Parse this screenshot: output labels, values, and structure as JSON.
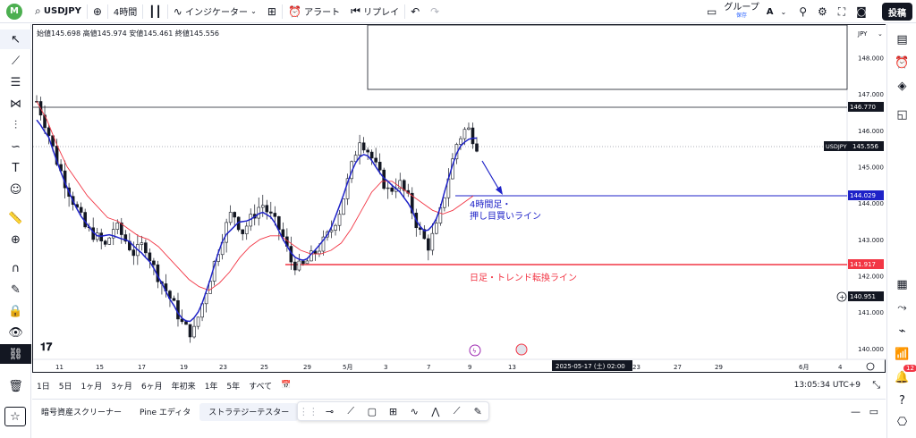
{
  "topbar": {
    "avatar": "M",
    "symbol": "USDJPY",
    "interval": "4時間",
    "indicators": "インジケーター",
    "alert": "アラート",
    "replay": "リプレイ",
    "group_label": "グループ",
    "group_sub": "保存",
    "group_letter": "A",
    "post_button": "投稿"
  },
  "legend": {
    "open": "始値145.698",
    "high": "高値145.974",
    "low": "安値145.461",
    "close": "終値145.556"
  },
  "price_axis": {
    "currency": "JPY",
    "ticks": [
      "148.000",
      "147.000",
      "146.000",
      "145.000",
      "144.000",
      "143.000",
      "142.000",
      "141.000",
      "140.000"
    ],
    "labels": {
      "line_146770": "146.770",
      "current_symbol": "USDJPY",
      "current_price": "145.556",
      "line_144029": "144.029",
      "line_141917": "141.917",
      "crosshair_price": "140.951"
    }
  },
  "time_axis": {
    "ticks": [
      "11",
      "15",
      "17",
      "19",
      "23",
      "25",
      "29",
      "5月",
      "3",
      "7",
      "9",
      "13",
      "15",
      "19",
      "23",
      "27",
      "29",
      "6月",
      "4"
    ],
    "crosshair_label": "2025-05-17 (土)   02:00"
  },
  "annotations": {
    "blue_line_text_1": "4時間足・",
    "blue_line_text_2": "押し目買いライン",
    "red_line_text": "日足・トレンド転換ライン"
  },
  "colors": {
    "blue": "#1e22c8",
    "red": "#f23645",
    "ma": "#f23645",
    "candle": "#131722",
    "black_label": "#131722"
  },
  "bottombar": {
    "ranges": [
      "1日",
      "5日",
      "1ヶ月",
      "3ヶ月",
      "6ヶ月",
      "年初来",
      "1年",
      "5年",
      "すべて"
    ],
    "clock": "13:05:34 UTC+9"
  },
  "panel": {
    "tabs": [
      "暗号資産スクリーナー",
      "Pine エディタ",
      "ストラテジーテスター"
    ]
  },
  "chart_data": {
    "type": "candlestick",
    "title": "",
    "ylim": [
      139.7,
      148.9
    ],
    "x_dates": [
      "11",
      "15",
      "17",
      "19",
      "23",
      "25",
      "29",
      "5月",
      "3",
      "7",
      "9"
    ],
    "close_path": [
      146.8,
      146.1,
      145.2,
      144.5,
      143.9,
      143.3,
      143.1,
      142.8,
      143.4,
      143.0,
      142.6,
      142.9,
      142.2,
      141.7,
      141.2,
      140.6,
      140.4,
      141.3,
      142.2,
      143.1,
      143.8,
      143.2,
      143.6,
      144.0,
      143.6,
      143.2,
      142.4,
      142.2,
      142.5,
      142.8,
      143.2,
      143.8,
      144.8,
      145.8,
      145.4,
      144.8,
      144.3,
      144.6,
      144.1,
      143.3,
      142.8,
      143.4,
      144.6,
      145.7,
      146.1,
      145.6
    ],
    "ma_path": [
      146.8,
      146.3,
      145.6,
      145.0,
      144.6,
      144.2,
      143.9,
      143.6,
      143.5,
      143.3,
      143.1,
      143.0,
      142.8,
      142.5,
      142.2,
      141.9,
      141.7,
      141.6,
      141.8,
      142.1,
      142.5,
      142.8,
      143.0,
      143.1,
      143.1,
      142.9,
      142.7,
      142.6,
      142.6,
      142.7,
      142.9,
      143.3,
      143.8,
      144.3,
      144.6,
      144.6,
      144.4,
      144.2,
      144.0,
      143.8,
      143.7,
      143.8,
      144.0,
      144.2
    ],
    "horizontal_lines": [
      146.77,
      144.029,
      141.917
    ]
  }
}
